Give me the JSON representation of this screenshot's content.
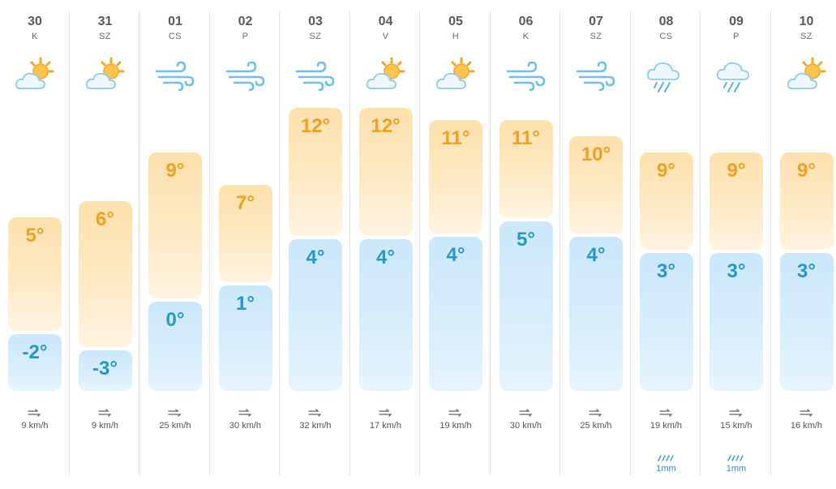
{
  "colors": {
    "warm": "#f1a020",
    "cold": "#2596cf",
    "warm_bar": "#fde1ad",
    "cold_bar": "#cbe7fb"
  },
  "days": [
    {
      "day": "30",
      "dow": "K",
      "icon": "partly-sunny-icon",
      "max": "5°",
      "min": "-2°",
      "wind": "9 km/h",
      "rain": ""
    },
    {
      "day": "31",
      "dow": "SZ",
      "icon": "partly-sunny-icon",
      "max": "6°",
      "min": "-3°",
      "wind": "9 km/h",
      "rain": ""
    },
    {
      "day": "01",
      "dow": "CS",
      "icon": "wind-icon",
      "max": "9°",
      "min": "0°",
      "wind": "25 km/h",
      "rain": ""
    },
    {
      "day": "02",
      "dow": "P",
      "icon": "wind-icon",
      "max": "7°",
      "min": "1°",
      "wind": "30 km/h",
      "rain": ""
    },
    {
      "day": "03",
      "dow": "SZ",
      "icon": "wind-icon",
      "max": "12°",
      "min": "4°",
      "wind": "32 km/h",
      "rain": ""
    },
    {
      "day": "04",
      "dow": "V",
      "icon": "partly-sunny-icon",
      "max": "12°",
      "min": "4°",
      "wind": "17 km/h",
      "rain": ""
    },
    {
      "day": "05",
      "dow": "H",
      "icon": "partly-sunny-icon",
      "max": "11°",
      "min": "4°",
      "wind": "19 km/h",
      "rain": ""
    },
    {
      "day": "06",
      "dow": "K",
      "icon": "wind-icon",
      "max": "11°",
      "min": "5°",
      "wind": "30 km/h",
      "rain": ""
    },
    {
      "day": "07",
      "dow": "SZ",
      "icon": "wind-icon",
      "max": "10°",
      "min": "4°",
      "wind": "25 km/h",
      "rain": ""
    },
    {
      "day": "08",
      "dow": "CS",
      "icon": "rain-cloud-icon",
      "max": "9°",
      "min": "3°",
      "wind": "19 km/h",
      "rain": "1mm"
    },
    {
      "day": "09",
      "dow": "P",
      "icon": "rain-cloud-icon",
      "max": "9°",
      "min": "3°",
      "wind": "15 km/h",
      "rain": "1mm"
    },
    {
      "day": "10",
      "dow": "SZ",
      "icon": "partly-sunny-icon",
      "max": "9°",
      "min": "3°",
      "wind": "16 km/h",
      "rain": ""
    }
  ]
}
